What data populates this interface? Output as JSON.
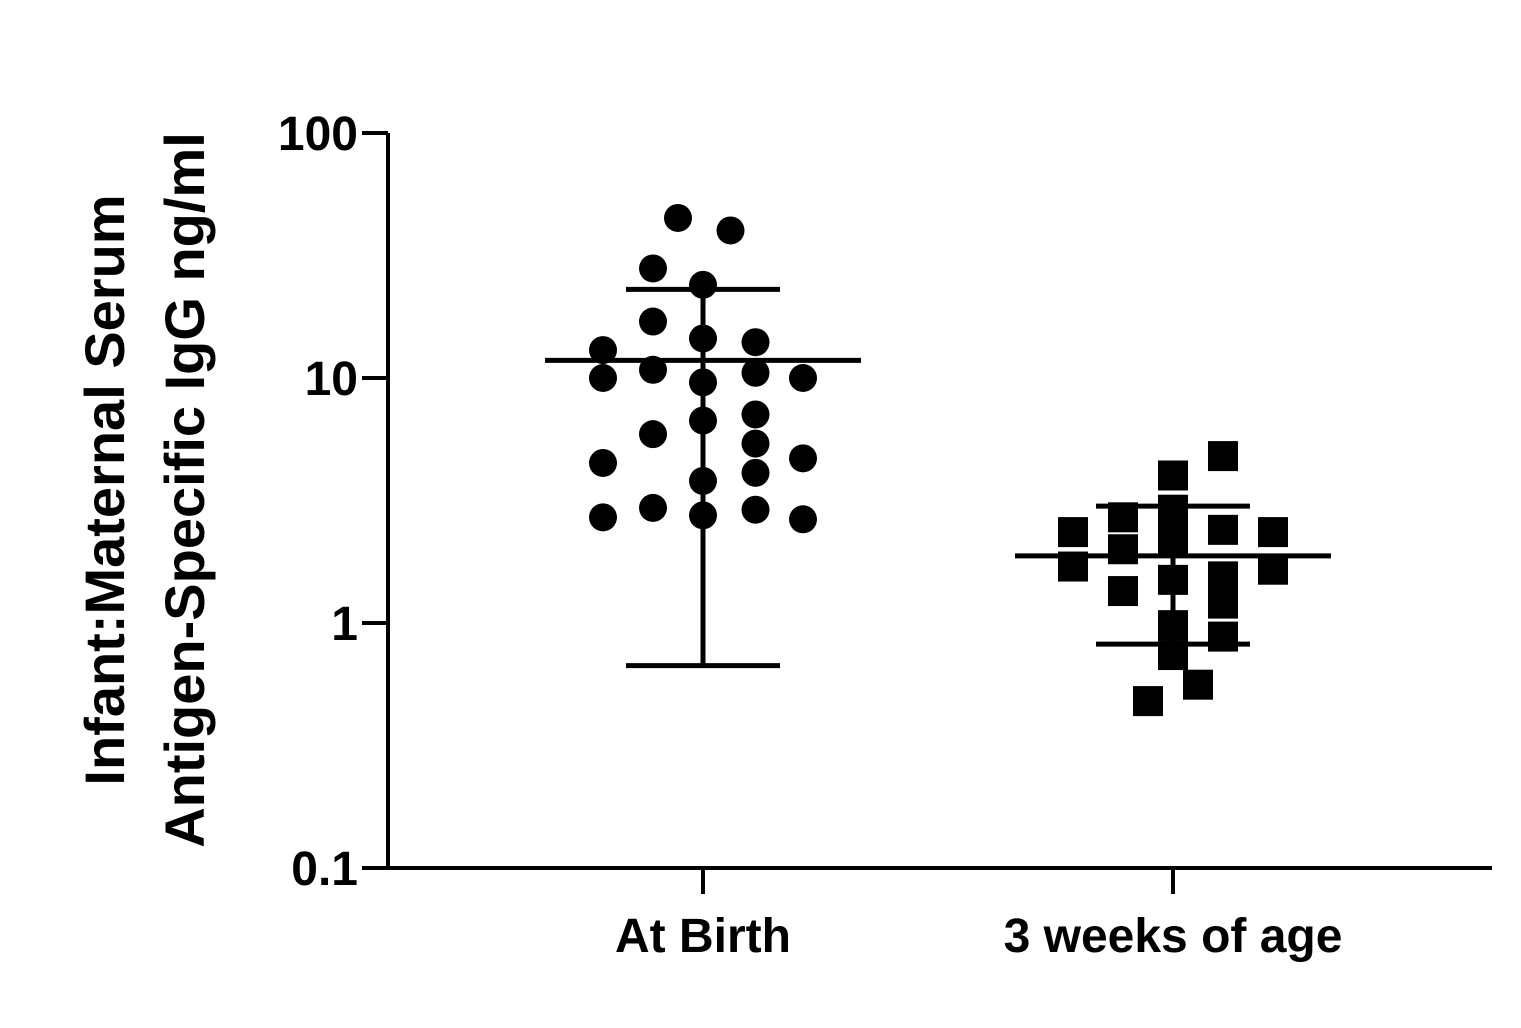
{
  "chart_data": {
    "type": "scatter",
    "title": "",
    "xlabel": "",
    "ylabel_lines": [
      "Infant:Maternal Serum",
      "Antigen-Specific IgG ng/ml"
    ],
    "y_scale": "log",
    "ylim": [
      0.1,
      100
    ],
    "y_ticks": [
      {
        "value": 100,
        "label": "100"
      },
      {
        "value": 10,
        "label": "10"
      },
      {
        "value": 1,
        "label": "1"
      },
      {
        "value": 0.1,
        "label": "0.1"
      }
    ],
    "categories": [
      "At Birth",
      "3 weeks of age"
    ],
    "colors": {
      "marker": "#000000",
      "axis": "#000000"
    },
    "series": [
      {
        "name": "At Birth",
        "category": "At Birth",
        "marker": "circle",
        "points": [
          {
            "offset": -0.5,
            "value": 45
          },
          {
            "offset": 0.55,
            "value": 40
          },
          {
            "offset": -1.0,
            "value": 28
          },
          {
            "offset": 0.0,
            "value": 24
          },
          {
            "offset": -1.0,
            "value": 17
          },
          {
            "offset": 0.0,
            "value": 14.5
          },
          {
            "offset": 1.05,
            "value": 14
          },
          {
            "offset": -2.0,
            "value": 13
          },
          {
            "offset": -2.0,
            "value": 10
          },
          {
            "offset": -1.0,
            "value": 10.8
          },
          {
            "offset": 0.0,
            "value": 9.6
          },
          {
            "offset": 1.05,
            "value": 10.5
          },
          {
            "offset": 2.0,
            "value": 10
          },
          {
            "offset": 0.0,
            "value": 6.7
          },
          {
            "offset": 1.05,
            "value": 7.1
          },
          {
            "offset": -1.0,
            "value": 5.9
          },
          {
            "offset": 1.05,
            "value": 5.4
          },
          {
            "offset": -2.0,
            "value": 4.5
          },
          {
            "offset": 1.05,
            "value": 4.1
          },
          {
            "offset": 2.0,
            "value": 4.7
          },
          {
            "offset": 0.0,
            "value": 3.8
          },
          {
            "offset": -2.0,
            "value": 2.7
          },
          {
            "offset": -1.0,
            "value": 2.95
          },
          {
            "offset": 0.0,
            "value": 2.75
          },
          {
            "offset": 1.05,
            "value": 2.9
          },
          {
            "offset": 2.0,
            "value": 2.65
          }
        ],
        "mean": 11.8,
        "error_upper": 23,
        "error_lower": 0.67
      },
      {
        "name": "3 weeks of age",
        "category": "3 weeks of age",
        "marker": "square",
        "points": [
          {
            "offset": 1.0,
            "value": 4.8
          },
          {
            "offset": 0.0,
            "value": 4.0
          },
          {
            "offset": -1.0,
            "value": 2.7
          },
          {
            "offset": 0.0,
            "value": 2.9
          },
          {
            "offset": -2.0,
            "value": 2.35
          },
          {
            "offset": 1.0,
            "value": 2.4
          },
          {
            "offset": 2.0,
            "value": 2.35
          },
          {
            "offset": -1.0,
            "value": 2.0
          },
          {
            "offset": 0.0,
            "value": 2.2
          },
          {
            "offset": -2.0,
            "value": 1.7
          },
          {
            "offset": 2.0,
            "value": 1.65
          },
          {
            "offset": 0.0,
            "value": 1.5
          },
          {
            "offset": 1.0,
            "value": 1.55
          },
          {
            "offset": -1.0,
            "value": 1.35
          },
          {
            "offset": 1.0,
            "value": 1.2
          },
          {
            "offset": 0.0,
            "value": 0.98
          },
          {
            "offset": 1.0,
            "value": 0.88
          },
          {
            "offset": 0.0,
            "value": 0.74
          },
          {
            "offset": 0.5,
            "value": 0.56
          },
          {
            "offset": -0.5,
            "value": 0.48
          }
        ],
        "mean": 1.88,
        "error_upper": 3.0,
        "error_lower": 0.82
      }
    ]
  }
}
